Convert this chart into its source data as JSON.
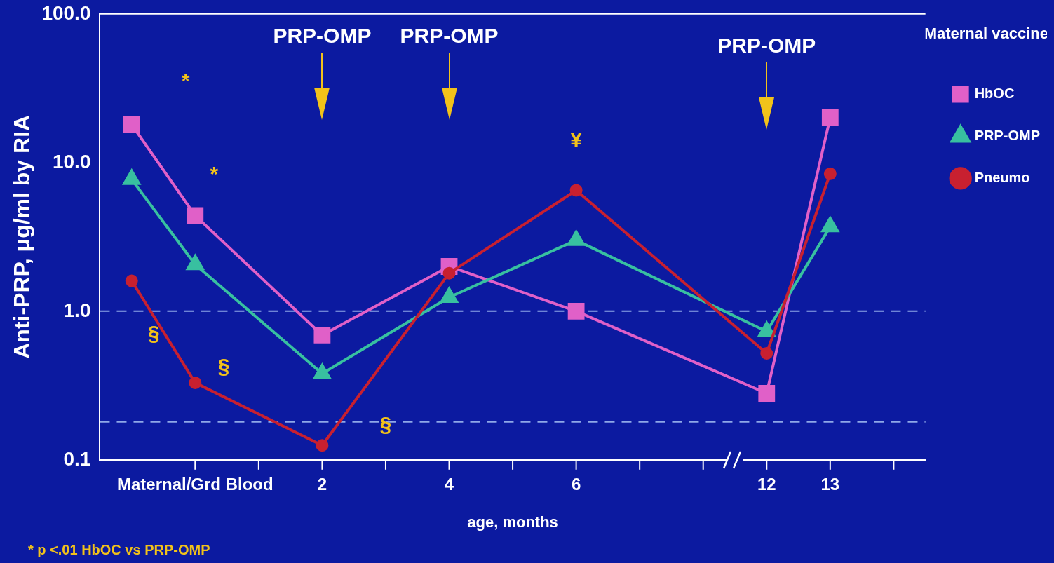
{
  "chart_data": {
    "type": "line",
    "ylabel": "Anti-PRP, μg/ml by RIA",
    "xlabel": "age, months",
    "legend_title": "Maternal vaccine",
    "legend": "right",
    "log": true,
    "categories": [
      null,
      "Maternal/Grd Blood",
      null,
      "2",
      null,
      "4",
      null,
      "6",
      null,
      null,
      "12",
      "13",
      null
    ],
    "ylim": [
      0.1,
      100
    ],
    "yticks": [
      {
        "value": 0.1,
        "label": "0.1"
      },
      {
        "value": 1,
        "label": "1.0"
      },
      {
        "value": 10,
        "label": "10.0"
      },
      {
        "value": 100,
        "label": "100.0"
      }
    ],
    "series": [
      {
        "name": "HbOC",
        "color": "#e060c8",
        "marker": "square",
        "values": [
          18,
          4.4,
          null,
          0.69,
          null,
          2.0,
          null,
          1.0,
          null,
          null,
          0.28,
          20,
          null
        ]
      },
      {
        "name": "PRP-OMP",
        "color": "#38c0a0",
        "marker": "triangle",
        "values": [
          7.7,
          2.06,
          null,
          0.38,
          null,
          1.24,
          null,
          3.0,
          null,
          null,
          0.73,
          3.7,
          null
        ]
      },
      {
        "name": "Pneumo",
        "color": "#c82030",
        "marker": "circle",
        "values": [
          1.6,
          0.33,
          null,
          0.125,
          null,
          1.8,
          null,
          6.5,
          null,
          null,
          0.52,
          8.4,
          null
        ]
      }
    ],
    "ref_lines": [
      {
        "axis": "y",
        "value": 1,
        "line_style": "dashed"
      },
      {
        "axis": "y",
        "value": 0.18,
        "line_style": "dashed"
      }
    ],
    "annotations": [
      "PRP-OMP",
      "PRP-OMP",
      "PRP-OMP",
      "¥",
      "*",
      "*",
      "§",
      "§",
      "§",
      "* p <.01 HbOC vs PRP-OMP"
    ]
  }
}
